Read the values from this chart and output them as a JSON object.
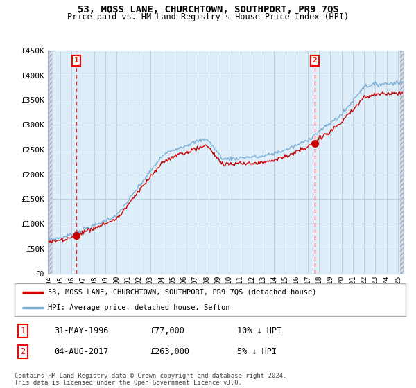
{
  "title": "53, MOSS LANE, CHURCHTOWN, SOUTHPORT, PR9 7QS",
  "subtitle": "Price paid vs. HM Land Registry's House Price Index (HPI)",
  "ylabel_ticks": [
    "£0",
    "£50K",
    "£100K",
    "£150K",
    "£200K",
    "£250K",
    "£300K",
    "£350K",
    "£400K",
    "£450K"
  ],
  "ytick_values": [
    0,
    50000,
    100000,
    150000,
    200000,
    250000,
    300000,
    350000,
    400000,
    450000
  ],
  "ylim": [
    0,
    450000
  ],
  "xlim_start": 1994.0,
  "xlim_end": 2025.5,
  "sale1_year": 1996.42,
  "sale1_price": 77000,
  "sale2_year": 2017.6,
  "sale2_price": 263000,
  "line_color_sales": "#cc0000",
  "line_color_hpi": "#7aaed4",
  "dashed_vline_color": "#dd3333",
  "background_plot": "#ddeef8",
  "grid_color": "#c0d0e0",
  "legend_label_sales": "53, MOSS LANE, CHURCHTOWN, SOUTHPORT, PR9 7QS (detached house)",
  "legend_label_hpi": "HPI: Average price, detached house, Sefton",
  "footer": "Contains HM Land Registry data © Crown copyright and database right 2024.\nThis data is licensed under the Open Government Licence v3.0.",
  "table_rows": [
    {
      "num": "1",
      "date": "31-MAY-1996",
      "price": "£77,000",
      "hpi": "10% ↓ HPI"
    },
    {
      "num": "2",
      "date": "04-AUG-2017",
      "price": "£263,000",
      "hpi": "5% ↓ HPI"
    }
  ],
  "xtick_years": [
    1994,
    1995,
    1996,
    1997,
    1998,
    1999,
    2000,
    2001,
    2002,
    2003,
    2004,
    2005,
    2006,
    2007,
    2008,
    2009,
    2010,
    2011,
    2012,
    2013,
    2014,
    2015,
    2016,
    2017,
    2018,
    2019,
    2020,
    2021,
    2022,
    2023,
    2024,
    2025
  ]
}
